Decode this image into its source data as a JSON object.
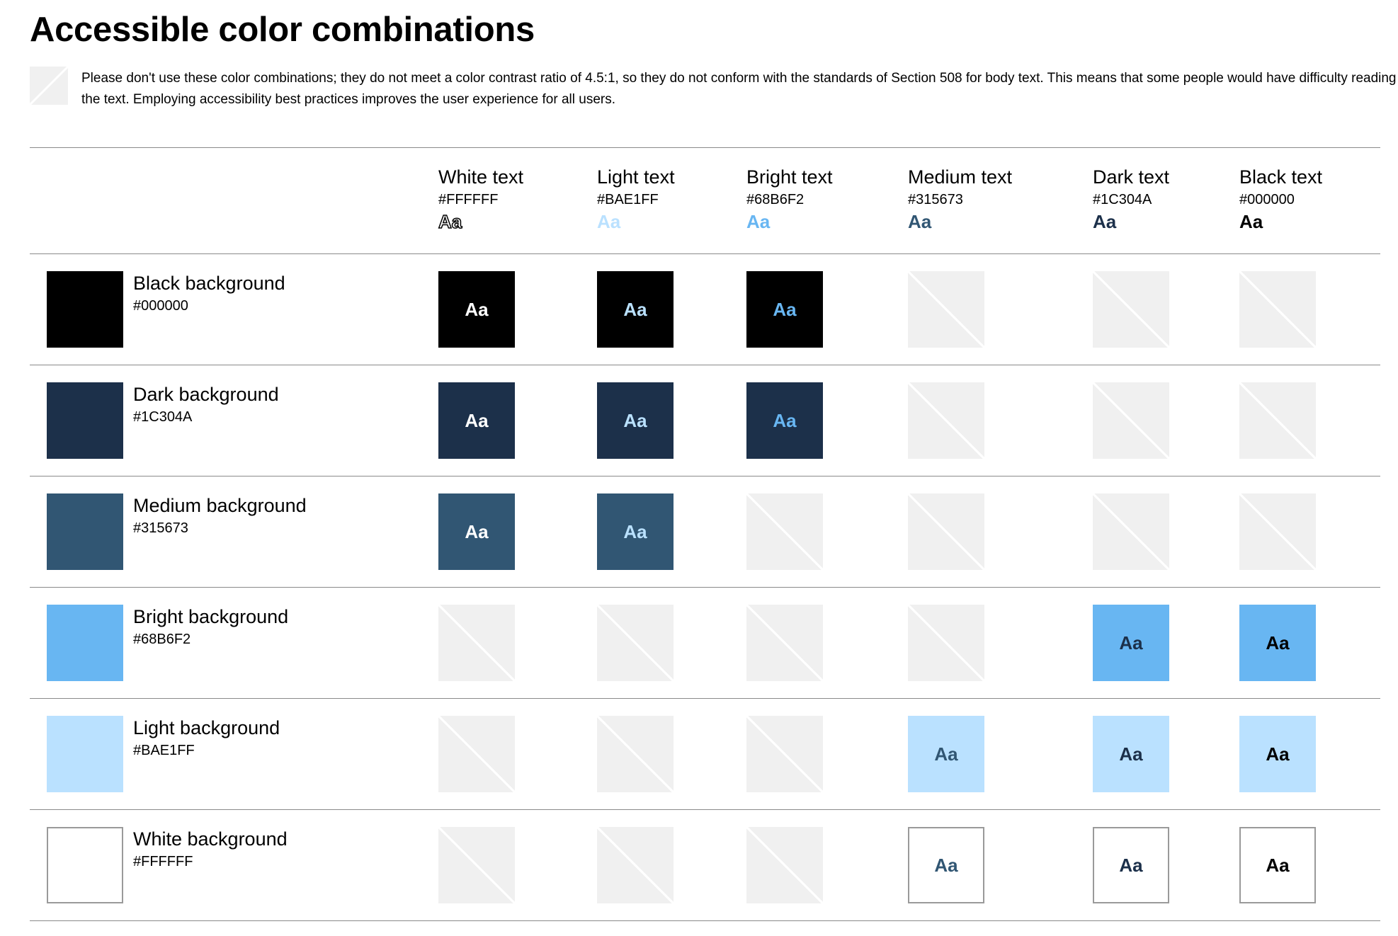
{
  "page": {
    "title": "Accessible color combinations",
    "notice_icon": "crossed-out-swatch-icon",
    "notice": "Please don't use these color combinations; they do not meet a color contrast ratio of 4.5:1, so they do not conform with the standards of Section 508 for body text. This means that some people would have difficulty reading the text. Employing accessibility best practices improves the user experience for all users."
  },
  "sample_text": "Aa",
  "columns": [
    {
      "name": "White text",
      "hex": "#FFFFFF",
      "sample": "Aa",
      "color": "#FFFFFF",
      "outlined": true
    },
    {
      "name": "Light text",
      "hex": "#BAE1FF",
      "sample": "Aa",
      "color": "#BAE1FF"
    },
    {
      "name": "Bright text",
      "hex": "#68B6F2",
      "sample": "Aa",
      "color": "#68B6F2"
    },
    {
      "name": "Medium text",
      "hex": "#315673",
      "sample": "Aa",
      "color": "#315673"
    },
    {
      "name": "Dark text",
      "hex": "#1C304A",
      "sample": "Aa",
      "color": "#1C304A"
    },
    {
      "name": "Black text",
      "hex": "#000000",
      "sample": "Aa",
      "color": "#000000"
    }
  ],
  "rows": [
    {
      "name": "Black background",
      "hex": "#000000",
      "color": "#000000",
      "ok": [
        true,
        true,
        true,
        false,
        false,
        false
      ]
    },
    {
      "name": "Dark background",
      "hex": "#1C304A",
      "color": "#1C304A",
      "ok": [
        true,
        true,
        true,
        false,
        false,
        false
      ]
    },
    {
      "name": "Medium background",
      "hex": "#315673",
      "color": "#315673",
      "ok": [
        true,
        true,
        false,
        false,
        false,
        false
      ]
    },
    {
      "name": "Bright background",
      "hex": "#68B6F2",
      "color": "#68B6F2",
      "ok": [
        false,
        false,
        false,
        false,
        true,
        true
      ]
    },
    {
      "name": "Light background",
      "hex": "#BAE1FF",
      "color": "#BAE1FF",
      "ok": [
        false,
        false,
        false,
        true,
        true,
        true
      ]
    },
    {
      "name": "White background",
      "hex": "#FFFFFF",
      "color": "#FFFFFF",
      "bordered": true,
      "ok": [
        false,
        false,
        false,
        true,
        true,
        true
      ]
    }
  ]
}
